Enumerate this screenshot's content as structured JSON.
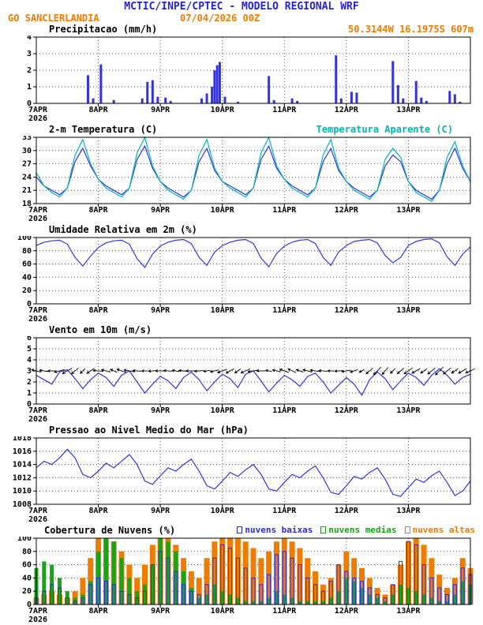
{
  "header": {
    "title": "MCTIC/INPE/CPTEC - MODELO REGIONAL WRF",
    "station": "GO SANCLERLANDIA",
    "run": "07/04/2026 00Z",
    "location": "50.3144W 16.1975S 607m"
  },
  "colors": {
    "title_blue": "#2424cc",
    "orange": "#ee7c00",
    "cyan": "#00b7b7",
    "blue": "#3333e0",
    "green": "#17a517",
    "legend_blue": "#2a2ae0",
    "black": "#000000"
  },
  "x_axis": {
    "start_label": "7APR",
    "year_label": "2026",
    "ticks": [
      "8APR",
      "9APR",
      "10APR",
      "11APR",
      "12APR",
      "13APR"
    ],
    "tick_hours": [
      24,
      48,
      72,
      96,
      120,
      144
    ],
    "hours_total": 168
  },
  "chart_data": [
    {
      "id": "precip",
      "type": "bar",
      "title": "Precipitacao (mm/h)",
      "ylim": [
        0,
        4
      ],
      "yticks": [
        0,
        1,
        2,
        3,
        4
      ],
      "points": [
        {
          "h": 20,
          "v": 1.7
        },
        {
          "h": 22,
          "v": 0.3
        },
        {
          "h": 25,
          "v": 2.35
        },
        {
          "h": 30,
          "v": 0.2
        },
        {
          "h": 41,
          "v": 0.3
        },
        {
          "h": 43,
          "v": 1.3
        },
        {
          "h": 45,
          "v": 1.4
        },
        {
          "h": 47,
          "v": 0.4
        },
        {
          "h": 50,
          "v": 0.35
        },
        {
          "h": 52,
          "v": 0.15
        },
        {
          "h": 64,
          "v": 0.3
        },
        {
          "h": 66,
          "v": 0.6
        },
        {
          "h": 68,
          "v": 1.0
        },
        {
          "h": 69,
          "v": 2.0
        },
        {
          "h": 70,
          "v": 2.3
        },
        {
          "h": 71,
          "v": 2.5
        },
        {
          "h": 73,
          "v": 0.4
        },
        {
          "h": 78,
          "v": 0.1
        },
        {
          "h": 90,
          "v": 1.65
        },
        {
          "h": 92,
          "v": 0.2
        },
        {
          "h": 99,
          "v": 0.3
        },
        {
          "h": 101,
          "v": 0.15
        },
        {
          "h": 116,
          "v": 2.9
        },
        {
          "h": 118,
          "v": 0.3
        },
        {
          "h": 122,
          "v": 0.7
        },
        {
          "h": 124,
          "v": 0.65
        },
        {
          "h": 138,
          "v": 2.55
        },
        {
          "h": 140,
          "v": 1.1
        },
        {
          "h": 142,
          "v": 0.3
        },
        {
          "h": 147,
          "v": 1.35
        },
        {
          "h": 149,
          "v": 0.35
        },
        {
          "h": 151,
          "v": 0.15
        },
        {
          "h": 160,
          "v": 0.75
        },
        {
          "h": 162,
          "v": 0.55
        },
        {
          "h": 164,
          "v": 0.1
        }
      ]
    },
    {
      "id": "temp",
      "type": "line",
      "title": "2-m Temperatura (C)",
      "ylim": [
        18,
        33
      ],
      "yticks": [
        18,
        21,
        24,
        27,
        30,
        33
      ],
      "x_step": 3,
      "series": [
        {
          "color": "blue",
          "values": [
            24,
            22,
            21,
            20,
            21.5,
            27.5,
            30.5,
            26.5,
            23.5,
            22,
            21,
            20,
            21.5,
            28,
            31,
            26,
            23,
            21.5,
            20.5,
            19.5,
            21,
            27.5,
            30.5,
            25.5,
            23,
            22,
            21,
            20,
            21.5,
            28,
            31,
            26,
            23.5,
            22,
            21,
            20,
            21.5,
            27.5,
            30.5,
            25.5,
            23,
            21.5,
            20.5,
            19.5,
            21,
            26.5,
            29,
            27.5,
            23,
            21,
            20,
            19,
            21,
            27,
            30.5,
            26,
            23
          ]
        },
        {
          "name": "Temperatura Aparente (C)",
          "color": "cyan",
          "values": [
            25,
            22,
            20.5,
            19.5,
            21.5,
            29,
            32.5,
            27,
            23.5,
            21.5,
            20.5,
            19.5,
            21.5,
            29.5,
            33,
            26.5,
            23,
            21,
            20,
            19,
            21,
            29,
            32.5,
            26,
            23,
            21.5,
            20.5,
            19.5,
            21.5,
            29.5,
            33,
            26.5,
            23.5,
            21.5,
            20.5,
            19.5,
            21.5,
            29,
            32.5,
            26,
            23,
            21,
            20,
            19,
            21,
            28,
            30.5,
            28.5,
            23,
            20.5,
            19.5,
            18.5,
            21,
            28.5,
            32,
            26.5,
            23
          ]
        }
      ]
    },
    {
      "id": "humidity",
      "type": "line",
      "title": "Umidade Relativa em 2m (%)",
      "ylim": [
        0,
        100
      ],
      "yticks": [
        0,
        20,
        40,
        60,
        80,
        100
      ],
      "x_step": 3,
      "series": [
        {
          "color": "blue",
          "values": [
            88,
            93,
            95,
            96,
            90,
            70,
            57,
            72,
            85,
            92,
            95,
            96,
            90,
            68,
            55,
            75,
            87,
            93,
            96,
            97,
            91,
            70,
            58,
            78,
            88,
            93,
            96,
            97,
            91,
            69,
            56,
            76,
            87,
            93,
            96,
            97,
            91,
            70,
            58,
            78,
            88,
            94,
            96,
            97,
            92,
            73,
            62,
            70,
            88,
            94,
            97,
            98,
            92,
            71,
            58,
            75,
            86
          ]
        }
      ]
    },
    {
      "id": "wind",
      "type": "wind",
      "title": "Vento em 10m (m/s)",
      "ylim": [
        0,
        6
      ],
      "yticks": [
        0,
        1,
        2,
        3,
        4,
        5,
        6
      ],
      "x_step": 3,
      "arrow_y": 3,
      "speed": [
        2.6,
        2.2,
        1.8,
        2.9,
        3.1,
        2.3,
        1.4,
        2.2,
        2.8,
        2.4,
        1.6,
        2.6,
        3.0,
        2.0,
        1.0,
        1.8,
        2.5,
        2.1,
        1.4,
        2.4,
        2.9,
        2.2,
        1.2,
        2.0,
        2.7,
        2.3,
        1.5,
        2.7,
        3.0,
        2.1,
        1.1,
        1.9,
        2.6,
        2.2,
        1.6,
        2.5,
        2.8,
        2.0,
        1.0,
        1.7,
        2.4,
        1.8,
        0.8,
        2.2,
        2.9,
        2.3,
        1.3,
        2.1,
        2.8,
        2.4,
        1.7,
        2.6,
        3.2,
        2.6,
        1.8,
        2.4,
        2.7
      ],
      "dirs": [
        195,
        190,
        180,
        165,
        150,
        140,
        135,
        145,
        185,
        195,
        205,
        200,
        190,
        185,
        180,
        175,
        180,
        185,
        190,
        185,
        180,
        175,
        170,
        165,
        160,
        150,
        145,
        155,
        170,
        180,
        190,
        195,
        200,
        205,
        200,
        195,
        190,
        185,
        180,
        175,
        170,
        160,
        150,
        140,
        135,
        130,
        135,
        140,
        145,
        150,
        145,
        140,
        135,
        140,
        145,
        150,
        155
      ]
    },
    {
      "id": "pressure",
      "type": "line",
      "title": "Pressao ao Nivel Medio do Mar (hPa)",
      "ylim": [
        1008,
        1018
      ],
      "yticks": [
        1008,
        1010,
        1012,
        1014,
        1016,
        1018
      ],
      "x_step": 3,
      "series": [
        {
          "color": "blue",
          "values": [
            1013.5,
            1014.5,
            1014.0,
            1015.0,
            1016.3,
            1015.0,
            1012.5,
            1012.0,
            1013.0,
            1014.2,
            1013.5,
            1014.5,
            1015.5,
            1014.0,
            1011.5,
            1011.0,
            1012.3,
            1013.5,
            1013.0,
            1014.0,
            1014.8,
            1013.0,
            1010.8,
            1010.3,
            1011.5,
            1012.8,
            1012.2,
            1013.2,
            1014.0,
            1012.5,
            1010.3,
            1010.0,
            1011.3,
            1012.5,
            1012.0,
            1013.0,
            1013.8,
            1012.0,
            1009.8,
            1009.5,
            1010.8,
            1012.2,
            1011.8,
            1012.8,
            1013.5,
            1011.8,
            1009.5,
            1009.2,
            1010.5,
            1011.8,
            1011.3,
            1012.3,
            1013.0,
            1011.3,
            1009.3,
            1010.0,
            1011.5
          ]
        }
      ]
    },
    {
      "id": "clouds",
      "type": "bars3",
      "title": "Cobertura de Nuvens (%)",
      "ylim": [
        0,
        100
      ],
      "yticks": [
        0,
        20,
        40,
        60,
        80,
        100
      ],
      "x_step": 3,
      "series": [
        {
          "name": "nuvens baixas",
          "color": "legend_blue",
          "style": "outline",
          "values": [
            10,
            20,
            30,
            25,
            10,
            5,
            10,
            30,
            40,
            35,
            30,
            20,
            15,
            10,
            20,
            60,
            80,
            70,
            50,
            30,
            20,
            15,
            30,
            70,
            90,
            85,
            70,
            55,
            40,
            30,
            45,
            75,
            80,
            70,
            60,
            40,
            30,
            20,
            35,
            60,
            50,
            40,
            35,
            25,
            15,
            10,
            30,
            65,
            95,
            90,
            60,
            40,
            25,
            15,
            30,
            55,
            45
          ]
        },
        {
          "name": "nuvens medias",
          "color": "green",
          "style": "fill",
          "values": [
            55,
            65,
            60,
            40,
            20,
            10,
            15,
            35,
            80,
            100,
            95,
            70,
            40,
            20,
            30,
            60,
            100,
            95,
            80,
            50,
            25,
            10,
            15,
            30,
            20,
            15,
            10,
            5,
            5,
            5,
            10,
            20,
            15,
            10,
            5,
            5,
            5,
            5,
            10,
            20,
            40,
            35,
            25,
            15,
            10,
            5,
            15,
            30,
            25,
            20,
            15,
            10,
            5,
            5,
            15,
            35,
            30
          ]
        },
        {
          "name": "nuvens altas",
          "color": "orange",
          "style": "fill",
          "values": [
            10,
            15,
            20,
            15,
            10,
            20,
            40,
            70,
            100,
            100,
            95,
            80,
            60,
            40,
            60,
            90,
            100,
            100,
            90,
            70,
            50,
            40,
            70,
            95,
            100,
            100,
            100,
            95,
            85,
            70,
            80,
            95,
            100,
            95,
            85,
            70,
            50,
            30,
            40,
            60,
            80,
            70,
            55,
            40,
            25,
            15,
            30,
            60,
            95,
            100,
            90,
            70,
            45,
            25,
            40,
            70,
            55
          ]
        }
      ]
    }
  ]
}
